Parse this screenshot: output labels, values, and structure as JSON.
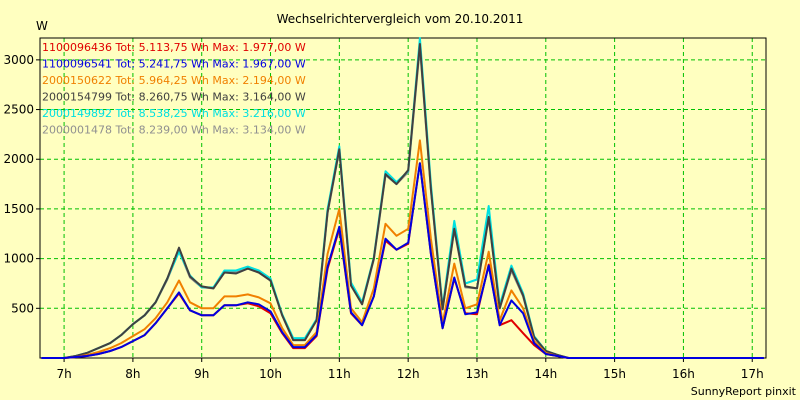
{
  "chart_data": {
    "type": "line",
    "title": "Wechselrichtervergleich vom 20.10.2011",
    "ylabel": "W",
    "xlabel": "",
    "footer": "SunnyReport pinxit",
    "xlim": [
      6.65,
      17.2
    ],
    "ylim": [
      0,
      3220
    ],
    "yticks": [
      500,
      1000,
      1500,
      2000,
      2500,
      3000
    ],
    "xticks": [
      {
        "label": "7h",
        "value": 7
      },
      {
        "label": "8h",
        "value": 8
      },
      {
        "label": "9h",
        "value": 9
      },
      {
        "label": "10h",
        "value": 10
      },
      {
        "label": "11h",
        "value": 11
      },
      {
        "label": "12h",
        "value": 12
      },
      {
        "label": "13h",
        "value": 13
      },
      {
        "label": "14h",
        "value": 14
      },
      {
        "label": "15h",
        "value": 15
      },
      {
        "label": "16h",
        "value": 16
      },
      {
        "label": "17h",
        "value": 17
      }
    ],
    "grid": true,
    "x": [
      6.67,
      6.83,
      7.0,
      7.17,
      7.33,
      7.5,
      7.67,
      7.83,
      8.0,
      8.17,
      8.33,
      8.5,
      8.67,
      8.83,
      9.0,
      9.17,
      9.33,
      9.5,
      9.67,
      9.83,
      10.0,
      10.17,
      10.33,
      10.5,
      10.67,
      10.83,
      11.0,
      11.17,
      11.33,
      11.5,
      11.67,
      11.83,
      12.0,
      12.17,
      12.33,
      12.5,
      12.67,
      12.83,
      13.0,
      13.17,
      13.33,
      13.5,
      13.67,
      13.83,
      14.0,
      14.17,
      14.33,
      14.5,
      14.67,
      14.83,
      15.0,
      15.17,
      15.33,
      15.5,
      15.67,
      15.83,
      16.0,
      16.17,
      16.33,
      16.5,
      16.67,
      16.83,
      17.0,
      17.17
    ],
    "series": [
      {
        "name": "1100096436",
        "legend": "1100096436 Tot: 5.113,75 Wh Max: 1.977,00 W",
        "color": "#e00000",
        "values": [
          0,
          0,
          0,
          10,
          20,
          40,
          70,
          110,
          170,
          230,
          350,
          500,
          650,
          480,
          430,
          430,
          530,
          530,
          550,
          520,
          450,
          250,
          100,
          100,
          220,
          900,
          1300,
          450,
          330,
          620,
          1180,
          1090,
          1150,
          1960,
          1050,
          300,
          800,
          450,
          440,
          940,
          330,
          380,
          250,
          130,
          40,
          20,
          0,
          0,
          0,
          0,
          0,
          0,
          0,
          0,
          0,
          0,
          0,
          0,
          0,
          0,
          0,
          0,
          0,
          0
        ]
      },
      {
        "name": "1100096541",
        "legend": "1100096541 Tot: 5.241,75 Wh Max: 1.967,00 W",
        "color": "#0000e0",
        "values": [
          0,
          0,
          0,
          10,
          20,
          40,
          70,
          110,
          170,
          230,
          350,
          500,
          660,
          480,
          430,
          430,
          530,
          530,
          560,
          540,
          470,
          260,
          110,
          110,
          230,
          920,
          1320,
          460,
          330,
          620,
          1200,
          1090,
          1160,
          1960,
          1050,
          300,
          810,
          440,
          460,
          930,
          330,
          580,
          450,
          150,
          40,
          20,
          0,
          0,
          0,
          0,
          0,
          0,
          0,
          0,
          0,
          0,
          0,
          0,
          0,
          0,
          0,
          0,
          0,
          0
        ]
      },
      {
        "name": "2000150622",
        "legend": "2000150622 Tot: 5.964,25 Wh Max: 2.194,00 W",
        "color": "#f08000",
        "values": [
          0,
          0,
          0,
          10,
          30,
          60,
          100,
          150,
          220,
          290,
          400,
          560,
          780,
          560,
          500,
          500,
          620,
          620,
          640,
          610,
          550,
          300,
          130,
          130,
          260,
          1050,
          1500,
          500,
          360,
          700,
          1350,
          1230,
          1300,
          2190,
          1200,
          350,
          950,
          500,
          540,
          1070,
          380,
          680,
          500,
          170,
          50,
          20,
          0,
          0,
          0,
          0,
          0,
          0,
          0,
          0,
          0,
          0,
          0,
          0,
          0,
          0,
          0,
          0,
          0,
          0
        ]
      },
      {
        "name": "2000154799",
        "legend": "2000154799 Tot: 8.260,75 Wh Max: 3.164,00 W",
        "color": "#404040",
        "values": [
          0,
          0,
          0,
          20,
          50,
          100,
          150,
          230,
          340,
          430,
          560,
          800,
          1110,
          820,
          720,
          700,
          860,
          850,
          900,
          860,
          780,
          430,
          180,
          180,
          380,
          1470,
          2100,
          730,
          540,
          1000,
          1850,
          1750,
          1890,
          3160,
          1700,
          490,
          1300,
          720,
          700,
          1420,
          500,
          900,
          630,
          210,
          70,
          30,
          0,
          0,
          0,
          0,
          0,
          0,
          0,
          0,
          0,
          0,
          0,
          0,
          0,
          0,
          0,
          0,
          0,
          0
        ]
      },
      {
        "name": "2000149892",
        "legend": "2000149892 Tot: 8.538,25 Wh Max: 3.216,00 W",
        "color": "#00e0e0",
        "values": [
          0,
          0,
          0,
          20,
          50,
          100,
          150,
          230,
          340,
          430,
          560,
          800,
          1070,
          830,
          710,
          710,
          880,
          880,
          920,
          880,
          800,
          440,
          200,
          200,
          390,
          1500,
          2130,
          760,
          560,
          1010,
          1880,
          1770,
          1880,
          3220,
          1750,
          510,
          1380,
          750,
          790,
          1530,
          530,
          930,
          650,
          220,
          70,
          30,
          0,
          0,
          0,
          0,
          0,
          0,
          0,
          0,
          0,
          0,
          0,
          0,
          0,
          0,
          0,
          0,
          0,
          0
        ]
      },
      {
        "name": "2000001478",
        "legend": "2000001478 Tot: 8.239,00 Wh Max: 3.134,00 W",
        "color": "#909090",
        "values": [
          0,
          0,
          0,
          20,
          50,
          100,
          150,
          230,
          340,
          430,
          560,
          790,
          1080,
          810,
          710,
          700,
          860,
          860,
          900,
          860,
          780,
          430,
          180,
          180,
          380,
          1460,
          2090,
          730,
          540,
          990,
          1840,
          1750,
          1870,
          3130,
          1690,
          490,
          1290,
          710,
          700,
          1410,
          500,
          880,
          620,
          210,
          70,
          30,
          0,
          0,
          0,
          0,
          0,
          0,
          0,
          0,
          0,
          0,
          0,
          0,
          0,
          0,
          0,
          0,
          0,
          0
        ]
      }
    ]
  }
}
